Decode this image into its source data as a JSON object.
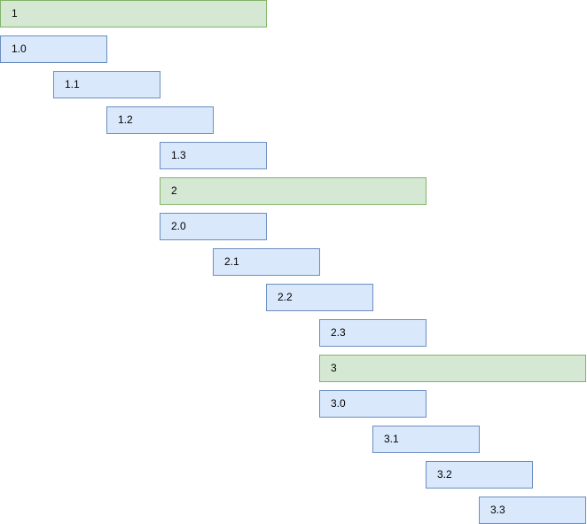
{
  "groups": [
    {
      "label": "1",
      "tasks": [
        "1.0",
        "1.1",
        "1.2",
        "1.3"
      ]
    },
    {
      "label": "2",
      "tasks": [
        "2.0",
        "2.1",
        "2.2",
        "2.3"
      ]
    },
    {
      "label": "3",
      "tasks": [
        "3.0",
        "3.1",
        "3.2",
        "3.3"
      ]
    }
  ]
}
